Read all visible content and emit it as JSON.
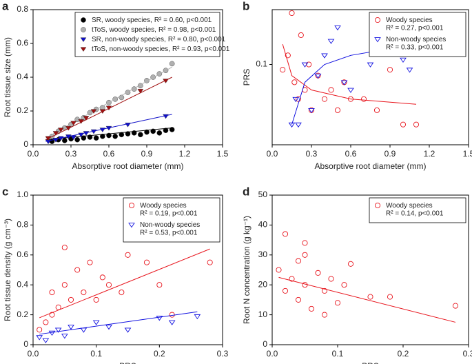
{
  "chart_data": [
    {
      "type": "scatter",
      "label": "a",
      "xlabel": "Absorptive root diameter (mm)",
      "ylabel": "Root tissue size (mm)",
      "xlim": [
        0,
        1.5
      ],
      "ylim": [
        0,
        0.8
      ],
      "log_y": false,
      "legend": "upper right",
      "xticks": [
        {
          "value": 0,
          "label": "0.0"
        },
        0.3,
        0.6,
        0.9,
        1.2,
        1.5
      ],
      "yticks": [
        0,
        0.2,
        0.4,
        0.6,
        0.8
      ],
      "series": [
        {
          "name": "SR, woody species,",
          "stats": "R² = 0.60, p<0.001",
          "color": "#000000",
          "marker": "circle",
          "filled": true,
          "x": [
            0.15,
            0.2,
            0.25,
            0.3,
            0.35,
            0.4,
            0.45,
            0.5,
            0.55,
            0.6,
            0.65,
            0.7,
            0.75,
            0.8,
            0.85,
            0.9,
            0.95,
            1.0,
            1.05,
            1.1
          ],
          "y": [
            0.02,
            0.03,
            0.025,
            0.035,
            0.03,
            0.04,
            0.045,
            0.04,
            0.05,
            0.055,
            0.05,
            0.06,
            0.065,
            0.07,
            0.06,
            0.075,
            0.08,
            0.07,
            0.085,
            0.09
          ],
          "fit": {
            "x": [
              0.1,
              1.1
            ],
            "y": [
              0.03,
              0.1
            ]
          }
        },
        {
          "name": "tToS, woody species,",
          "stats": "R² = 0.98, p<0.001",
          "color": "#b0b0b0",
          "marker": "circle",
          "filled": true,
          "x": [
            0.15,
            0.2,
            0.25,
            0.3,
            0.35,
            0.4,
            0.45,
            0.5,
            0.55,
            0.6,
            0.65,
            0.7,
            0.75,
            0.8,
            0.85,
            0.9,
            0.95,
            1.0,
            1.05,
            1.1
          ],
          "y": [
            0.05,
            0.08,
            0.1,
            0.12,
            0.15,
            0.16,
            0.19,
            0.21,
            0.22,
            0.25,
            0.27,
            0.28,
            0.31,
            0.33,
            0.35,
            0.38,
            0.4,
            0.42,
            0.44,
            0.48
          ],
          "fit": {
            "x": [
              0.1,
              1.1
            ],
            "y": [
              0.04,
              0.46
            ]
          }
        },
        {
          "name": "SR, non-woody species,",
          "stats": "R² = 0.80, p<0.001",
          "color": "#1010c8",
          "marker": "triangle",
          "filled": true,
          "x": [
            0.12,
            0.18,
            0.22,
            0.28,
            0.32,
            0.38,
            0.42,
            0.48,
            0.55,
            0.6,
            0.75,
            1.05
          ],
          "y": [
            0.02,
            0.03,
            0.04,
            0.05,
            0.045,
            0.06,
            0.07,
            0.08,
            0.09,
            0.1,
            0.12,
            0.17
          ],
          "fit": {
            "x": [
              0.1,
              1.1
            ],
            "y": [
              0.02,
              0.18
            ]
          }
        },
        {
          "name": "tToS, non-woody species,",
          "stats": "R² = 0.93, p<0.001",
          "color": "#a01010",
          "marker": "triangle",
          "filled": true,
          "x": [
            0.12,
            0.18,
            0.22,
            0.28,
            0.32,
            0.38,
            0.42,
            0.48,
            0.55,
            0.6,
            0.85,
            1.05
          ],
          "y": [
            0.04,
            0.07,
            0.09,
            0.1,
            0.13,
            0.14,
            0.16,
            0.2,
            0.2,
            0.22,
            0.32,
            0.38
          ],
          "fit": {
            "x": [
              0.1,
              1.1
            ],
            "y": [
              0.03,
              0.4
            ]
          }
        }
      ]
    },
    {
      "type": "scatter",
      "label": "b",
      "xlabel": "Absorptive root diameter (mm)",
      "ylabel": "PRS",
      "xlim": [
        0,
        1.5
      ],
      "ylim": [
        0.02,
        0.3
      ],
      "log_y": true,
      "legend": "upper right",
      "xticks": [
        {
          "value": 0,
          "label": "0.0"
        },
        0.3,
        0.6,
        0.9,
        1.2,
        1.5
      ],
      "yticks": [
        0.1
      ],
      "series": [
        {
          "name": "Woody species",
          "stats": "R² = 0.27, p<0.001",
          "color": "#e8141c",
          "marker": "circle",
          "filled": false,
          "x": [
            0.08,
            0.12,
            0.15,
            0.17,
            0.2,
            0.22,
            0.25,
            0.28,
            0.3,
            0.35,
            0.4,
            0.45,
            0.5,
            0.55,
            0.6,
            0.7,
            0.8,
            0.9,
            1.0,
            1.1
          ],
          "y": [
            0.09,
            0.12,
            0.28,
            0.07,
            0.05,
            0.18,
            0.06,
            0.1,
            0.04,
            0.08,
            0.05,
            0.06,
            0.04,
            0.07,
            0.05,
            0.05,
            0.04,
            0.09,
            0.03,
            0.03
          ],
          "fit": {
            "x": [
              0.08,
              0.15,
              0.3,
              0.6,
              1.1
            ],
            "y": [
              0.15,
              0.08,
              0.06,
              0.05,
              0.045
            ]
          }
        },
        {
          "name": "Non-woody species",
          "stats": "R² = 0.33, p<0.001",
          "color": "#1010e0",
          "marker": "triangle",
          "filled": false,
          "x": [
            0.15,
            0.18,
            0.2,
            0.25,
            0.3,
            0.35,
            0.4,
            0.45,
            0.5,
            0.55,
            0.6,
            0.75,
            1.0,
            1.05
          ],
          "y": [
            0.03,
            0.05,
            0.03,
            0.1,
            0.04,
            0.08,
            0.12,
            0.16,
            0.21,
            0.07,
            0.06,
            0.1,
            0.11,
            0.09
          ],
          "fit": {
            "x": [
              0.15,
              0.25,
              0.4,
              0.6,
              1.1
            ],
            "y": [
              0.03,
              0.07,
              0.1,
              0.12,
              0.15
            ]
          }
        }
      ]
    },
    {
      "type": "scatter",
      "label": "c",
      "xlabel": "PRS",
      "ylabel": "Root tissue density (g cm⁻³)",
      "xlim": [
        0,
        0.3
      ],
      "ylim": [
        0,
        1
      ],
      "log_y": false,
      "legend": "upper right",
      "xticks": [
        {
          "value": 0,
          "label": "0.0"
        },
        0.1,
        0.2,
        0.3
      ],
      "yticks": [
        0,
        0.2,
        0.4,
        0.6,
        0.8,
        {
          "value": 1,
          "label": "1.0"
        }
      ],
      "series": [
        {
          "name": "Woody species",
          "stats": "R² = 0.19, p<0.001",
          "color": "#e8141c",
          "marker": "circle",
          "filled": false,
          "x": [
            0.01,
            0.02,
            0.03,
            0.03,
            0.04,
            0.05,
            0.05,
            0.06,
            0.07,
            0.08,
            0.09,
            0.1,
            0.11,
            0.12,
            0.14,
            0.15,
            0.18,
            0.2,
            0.22,
            0.28
          ],
          "y": [
            0.1,
            0.15,
            0.2,
            0.35,
            0.25,
            0.4,
            0.65,
            0.3,
            0.5,
            0.35,
            0.55,
            0.3,
            0.45,
            0.4,
            0.35,
            0.6,
            0.55,
            0.4,
            0.2,
            0.55
          ],
          "fit": {
            "x": [
              0.01,
              0.28
            ],
            "y": [
              0.18,
              0.64
            ]
          }
        },
        {
          "name": "Non-woody species",
          "stats": "R² = 0.53, p<0.001",
          "color": "#1010e0",
          "marker": "triangle",
          "filled": false,
          "x": [
            0.01,
            0.02,
            0.03,
            0.04,
            0.05,
            0.06,
            0.08,
            0.1,
            0.12,
            0.15,
            0.2,
            0.22,
            0.26
          ],
          "y": [
            0.05,
            0.03,
            0.08,
            0.1,
            0.06,
            0.12,
            0.1,
            0.15,
            0.12,
            0.1,
            0.18,
            0.15,
            0.19
          ],
          "fit": {
            "x": [
              0.01,
              0.26
            ],
            "y": [
              0.07,
              0.22
            ]
          }
        }
      ]
    },
    {
      "type": "scatter",
      "label": "d",
      "xlabel": "PRS",
      "ylabel": "Root N concentration (g kg⁻¹)",
      "xlim": [
        0,
        0.3
      ],
      "ylim": [
        0,
        50
      ],
      "log_y": false,
      "legend": "upper right",
      "xticks": [
        {
          "value": 0,
          "label": "0.0"
        },
        0.1,
        0.2,
        0.3
      ],
      "yticks": [
        0,
        10,
        20,
        30,
        40,
        50
      ],
      "series": [
        {
          "name": "Woody species",
          "stats": "R² = 0.14, p<0.001",
          "color": "#e8141c",
          "marker": "circle",
          "filled": false,
          "x": [
            0.01,
            0.02,
            0.02,
            0.03,
            0.04,
            0.04,
            0.05,
            0.05,
            0.06,
            0.07,
            0.08,
            0.09,
            0.1,
            0.11,
            0.12,
            0.15,
            0.18,
            0.28,
            0.05,
            0.08
          ],
          "y": [
            25,
            18,
            37,
            22,
            15,
            28,
            20,
            34,
            12,
            24,
            18,
            22,
            14,
            20,
            27,
            16,
            16,
            13,
            30,
            10
          ],
          "fit": {
            "x": [
              0.01,
              0.28
            ],
            "y": [
              22.5,
              7.5
            ]
          }
        }
      ]
    }
  ]
}
